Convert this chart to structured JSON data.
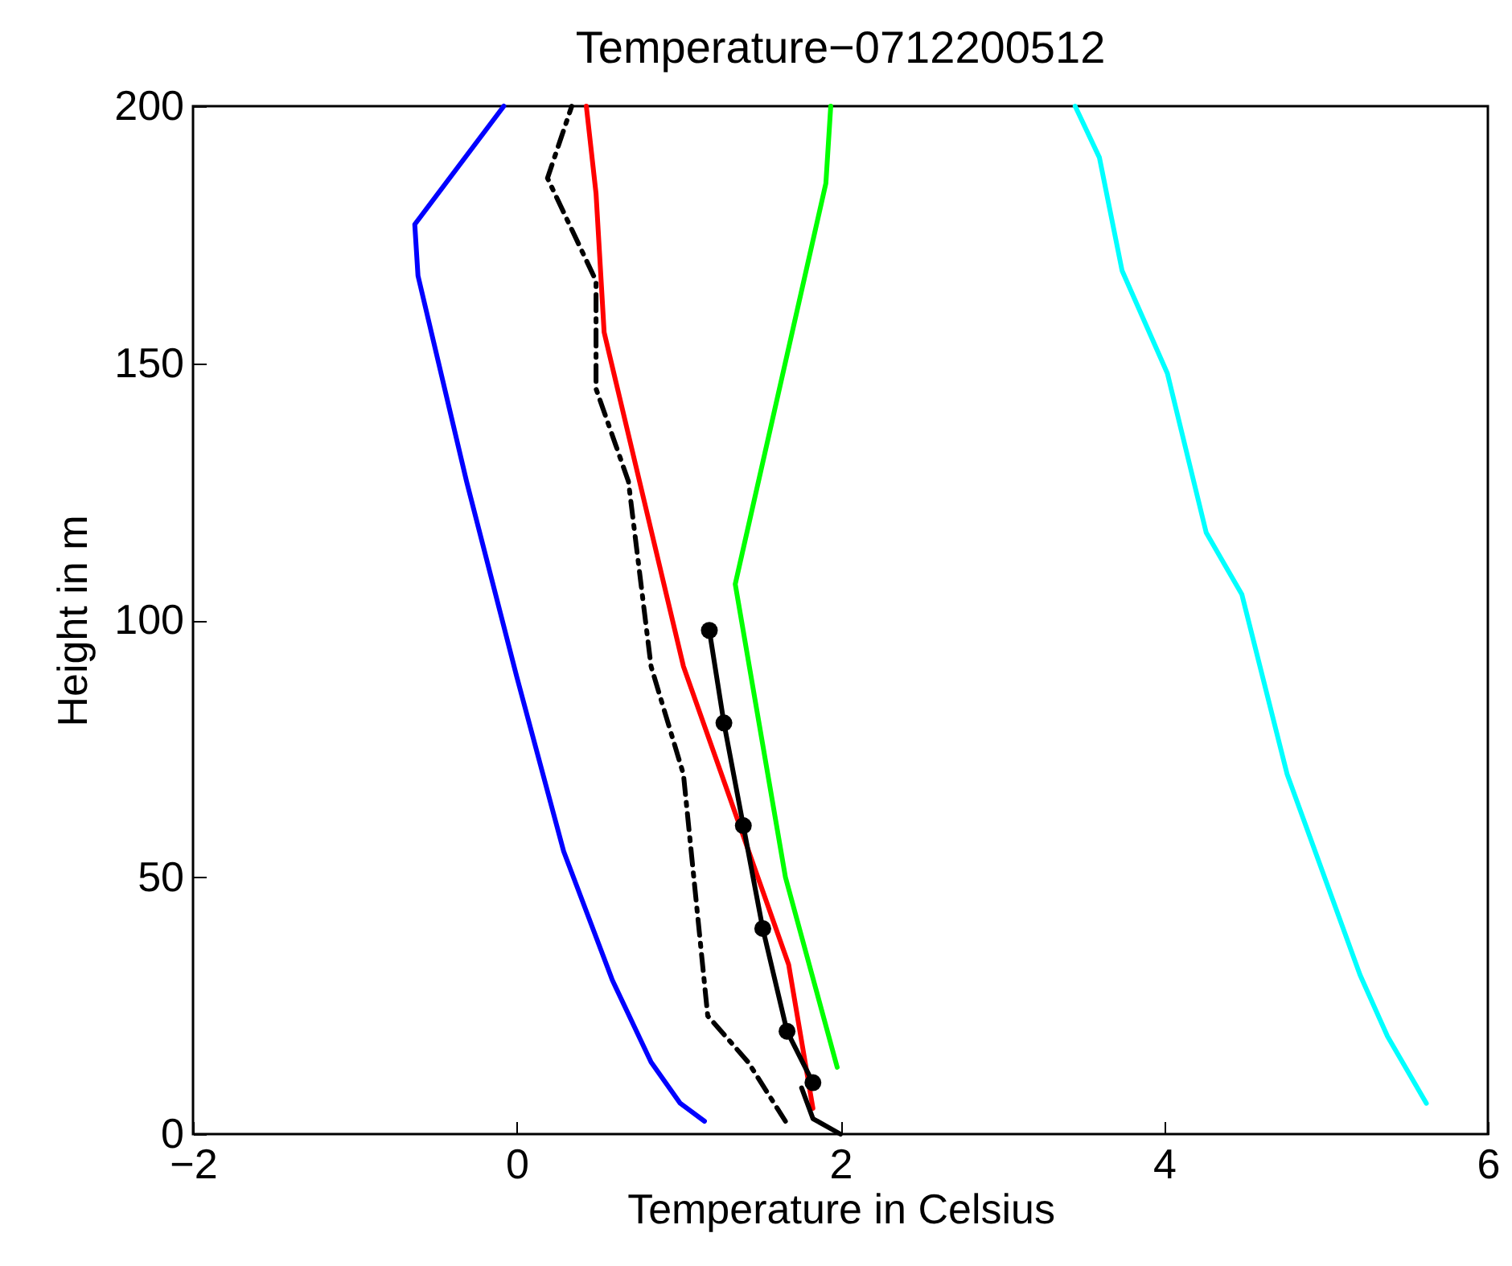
{
  "chart_data": {
    "type": "line",
    "title": "Temperature−0712200512",
    "xlabel": "Temperature in Celsius",
    "ylabel": "Height in m",
    "xlim": [
      -2,
      6
    ],
    "xticks": [
      -2,
      0,
      2,
      4,
      6
    ],
    "ylim": [
      0,
      200
    ],
    "yticks": [
      0,
      50,
      100,
      150,
      200
    ],
    "grid": false,
    "series": [
      {
        "color": "#0000ff",
        "x": [
          1.16,
          1.01,
          0.83,
          0.59,
          0.29,
          0,
          -0.31,
          -0.61,
          -0.63,
          -0.08
        ],
        "values": [
          2.5,
          6,
          14,
          30,
          55,
          89,
          127,
          167,
          177,
          200
        ]
      },
      {
        "color": "#ff0000",
        "x": [
          1.83,
          1.68,
          1.03,
          0.54,
          0.49,
          0.43
        ],
        "values": [
          5,
          33,
          91,
          156,
          183,
          200
        ]
      },
      {
        "color": "#000000",
        "line_style": "dashed",
        "x": [
          1.66,
          1.43,
          1.18,
          1.03,
          0.83,
          0.69,
          0.49,
          0.49,
          0.19,
          0.34
        ],
        "values": [
          2.5,
          14,
          23,
          70,
          91,
          127,
          145,
          166,
          186,
          200
        ]
      },
      {
        "color": "#00ff00",
        "x": [
          1.98,
          1.66,
          1.35,
          1.91,
          1.94
        ],
        "values": [
          13,
          50,
          107,
          185,
          200
        ]
      },
      {
        "color": "#00ffff",
        "x": [
          5.62,
          5.38,
          5.21,
          4.76,
          4.48,
          4.26,
          4.02,
          3.74,
          3.6,
          3.45
        ],
        "values": [
          6,
          19,
          31,
          70,
          105,
          117,
          148,
          168,
          190,
          200
        ]
      },
      {
        "color": "#000000",
        "marker": "circle",
        "x": [
          1.19,
          1.28,
          1.4,
          1.52,
          1.67,
          1.83
        ],
        "values": [
          98,
          80,
          60,
          40,
          20,
          10
        ]
      },
      {
        "color": "#000000",
        "x": [
          1.76,
          1.83,
          2.0
        ],
        "values": [
          9,
          3,
          0
        ]
      }
    ]
  }
}
